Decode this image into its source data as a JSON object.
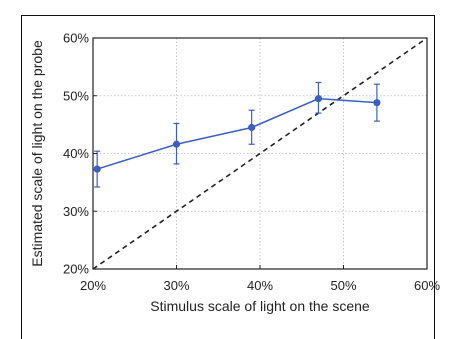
{
  "chart_data": {
    "type": "line",
    "title": "",
    "xlabel": "Stimulus scale of light on the scene",
    "ylabel": "Estimated scale of light on the probe",
    "xlim": [
      20,
      60
    ],
    "ylim": [
      20,
      60
    ],
    "x_ticks": [
      20,
      30,
      40,
      50,
      60
    ],
    "y_ticks": [
      20,
      30,
      40,
      50,
      60
    ],
    "x_tick_labels": [
      "20%",
      "30%",
      "40%",
      "50%",
      "60%"
    ],
    "y_tick_labels": [
      "20%",
      "30%",
      "40%",
      "50%",
      "60%"
    ],
    "grid": true,
    "series": [
      {
        "x": [
          20.5,
          30.0,
          39.0,
          47.0,
          54.0
        ],
        "y": [
          37.3,
          41.6,
          44.5,
          49.5,
          48.8
        ],
        "err_low": [
          34.2,
          38.2,
          41.6,
          47.0,
          45.6
        ],
        "err_high": [
          40.4,
          45.2,
          47.5,
          52.3,
          52.0
        ],
        "color": "#3b5fc0"
      }
    ],
    "reference_line": {
      "style": "dashed",
      "color": "#222222",
      "x": [
        20,
        60
      ],
      "y": [
        20,
        60
      ]
    }
  }
}
